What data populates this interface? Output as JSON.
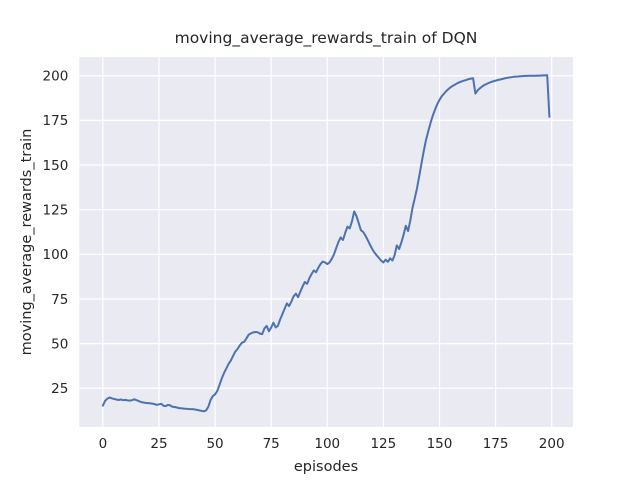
{
  "figure": {
    "title": "moving_average_rewards_train of DQN",
    "xlabel": "episodes",
    "ylabel": "moving_average_rewards_train"
  },
  "chart_data": {
    "type": "line",
    "title": "moving_average_rewards_train of DQN",
    "xlabel": "episodes",
    "ylabel": "moving_average_rewards_train",
    "x_description": "episode index, one point per episode from 0 to 199",
    "xlim": [
      -10.5,
      209.5
    ],
    "ylim": [
      3.3,
      210.5
    ],
    "xticks": [
      0,
      25,
      50,
      75,
      100,
      125,
      150,
      175,
      200
    ],
    "yticks": [
      25,
      50,
      75,
      100,
      125,
      150,
      175,
      200
    ],
    "grid": true,
    "legend": false,
    "style": {
      "figure_bg": "#FFFFFF",
      "plot_bg": "#EAEAF2",
      "grid_color": "#FFFFFF",
      "text_color": "#262626",
      "line_color": "#4C72B0"
    },
    "series": [
      {
        "name": "moving_average_rewards_train",
        "color": "#4C72B0",
        "values": [
          15.3,
          18.0,
          19.2,
          19.8,
          19.4,
          19.0,
          18.7,
          18.4,
          18.7,
          18.3,
          18.5,
          18.2,
          18.1,
          18.3,
          18.8,
          18.3,
          17.8,
          17.3,
          17.0,
          16.8,
          16.7,
          16.6,
          16.4,
          16.1,
          15.7,
          16.0,
          16.3,
          15.2,
          15.0,
          15.7,
          15.4,
          14.6,
          14.5,
          14.2,
          13.9,
          13.8,
          13.6,
          13.5,
          13.4,
          13.3,
          13.3,
          13.1,
          12.9,
          12.6,
          12.3,
          12.1,
          12.6,
          14.6,
          18.4,
          20.6,
          21.6,
          23.5,
          27.0,
          30.5,
          33.5,
          36.0,
          38.5,
          40.5,
          43.0,
          45.5,
          47.0,
          49.0,
          50.5,
          51.0,
          53.0,
          55.0,
          55.8,
          56.3,
          56.5,
          56.4,
          55.6,
          55.3,
          58.5,
          59.9,
          56.9,
          59.0,
          61.7,
          59.0,
          60.0,
          63.5,
          66.5,
          69.5,
          72.5,
          71.0,
          73.5,
          76.5,
          78.0,
          76.0,
          79.0,
          82.0,
          84.5,
          83.5,
          86.5,
          89.0,
          91.0,
          90.0,
          92.5,
          94.5,
          96.0,
          95.5,
          94.5,
          95.5,
          97.5,
          100.0,
          103.5,
          107.0,
          109.5,
          108.0,
          112.0,
          115.5,
          114.5,
          118.5,
          124.0,
          121.5,
          117.5,
          113.5,
          112.5,
          110.5,
          108.0,
          105.5,
          103.0,
          101.0,
          99.5,
          98.0,
          96.5,
          95.5,
          97.0,
          95.8,
          97.8,
          96.5,
          99.5,
          105.0,
          103.0,
          106.5,
          111.0,
          116.0,
          113.0,
          119.0,
          126.0,
          131.5,
          137.0,
          144.0,
          151.0,
          158.0,
          164.0,
          169.0,
          173.5,
          177.5,
          181.0,
          184.0,
          186.5,
          188.5,
          190.0,
          191.4,
          192.6,
          193.6,
          194.4,
          195.1,
          195.8,
          196.4,
          196.9,
          197.3,
          197.7,
          198.1,
          198.4,
          198.6,
          190.0,
          191.8,
          193.0,
          194.0,
          194.8,
          195.4,
          196.0,
          196.5,
          196.9,
          197.3,
          197.6,
          197.9,
          198.2,
          198.5,
          198.8,
          199.0,
          199.2,
          199.4,
          199.5,
          199.6,
          199.7,
          199.8,
          199.9,
          199.9,
          200.0,
          200.0,
          200.0,
          200.0,
          200.1,
          200.1,
          200.2,
          200.2,
          200.3,
          177.0
        ]
      }
    ]
  }
}
